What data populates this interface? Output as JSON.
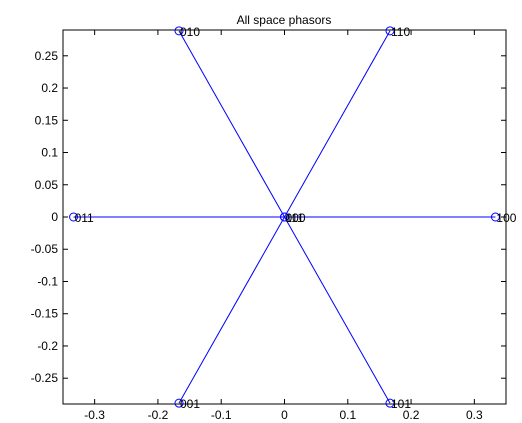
{
  "chart_data": {
    "type": "scatter",
    "title": "All space phasors",
    "xlabel": "",
    "ylabel": "",
    "xlim": [
      -0.35,
      0.35
    ],
    "ylim": [
      -0.29,
      0.29
    ],
    "grid": false,
    "x_ticks": [
      "-0.3",
      "-0.2",
      "-0.1",
      "0",
      "0.1",
      "0.2",
      "0.3"
    ],
    "y_ticks": [
      "0.25",
      "0.2",
      "0.15",
      "0.1",
      "0.05",
      "0",
      "-0.05",
      "-0.1",
      "-0.15",
      "-0.2",
      "-0.25"
    ],
    "x_tick_values": [
      -0.3,
      -0.2,
      -0.1,
      0,
      0.1,
      0.2,
      0.3
    ],
    "y_tick_values": [
      0.25,
      0.2,
      0.15,
      0.1,
      0.05,
      0,
      -0.05,
      -0.1,
      -0.15,
      -0.2,
      -0.25
    ],
    "series_color": "#0000ff",
    "marker": "circle",
    "points": [
      {
        "label": "000",
        "x": 0,
        "y": 0
      },
      {
        "label": "100",
        "x": 0.3333,
        "y": 0
      },
      {
        "label": "110",
        "x": 0.1667,
        "y": 0.2887
      },
      {
        "label": "010",
        "x": -0.1667,
        "y": 0.2887
      },
      {
        "label": "011",
        "x": -0.3333,
        "y": 0
      },
      {
        "label": "001",
        "x": -0.1667,
        "y": -0.2887
      },
      {
        "label": "101",
        "x": 0.1667,
        "y": -0.2887
      },
      {
        "label": "111",
        "x": 0,
        "y": 0
      }
    ]
  }
}
